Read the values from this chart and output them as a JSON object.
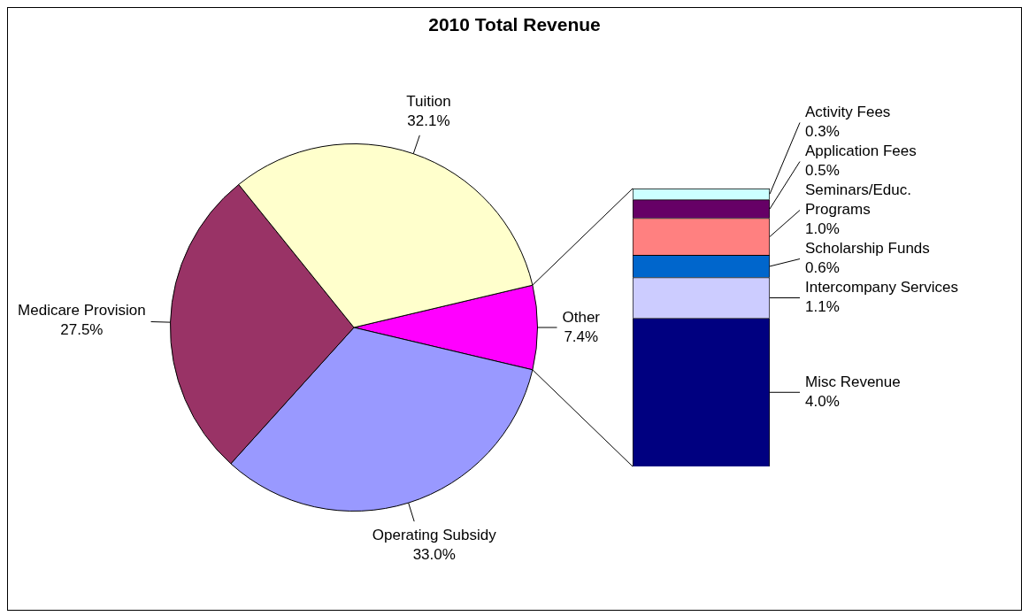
{
  "chart_data": [
    {
      "type": "pie",
      "title": "2010 Total Revenue",
      "categories": [
        "Other",
        "Operating Subsidy",
        "Medicare Provision",
        "Tuition"
      ],
      "values": [
        7.4,
        33.0,
        27.5,
        32.1
      ],
      "colors": [
        "#ff00ff",
        "#9999ff",
        "#993366",
        "#ffffcc"
      ],
      "value_labels": [
        "7.4%",
        "33.0%",
        "27.5%",
        "32.1%"
      ]
    },
    {
      "type": "bar",
      "stacked": true,
      "categories": [
        null
      ],
      "series": [
        {
          "name": "Misc Revenue",
          "color": "#000080",
          "values": [
            4.0
          ],
          "value_labels": [
            "4.0%"
          ]
        },
        {
          "name": "Intercompany Services",
          "color": "#ccccff",
          "values": [
            1.1
          ],
          "value_labels": [
            "1.1%"
          ]
        },
        {
          "name": "Scholarship Funds",
          "color": "#0066cc",
          "values": [
            0.6
          ],
          "value_labels": [
            "0.6%"
          ]
        },
        {
          "name": "Seminars/Educ. Programs",
          "color": "#ff8080",
          "values": [
            1.0
          ],
          "value_labels": [
            "1.0%"
          ]
        },
        {
          "name": "Application Fees",
          "color": "#660066",
          "values": [
            0.5
          ],
          "value_labels": [
            "0.5%"
          ]
        },
        {
          "name": "Activity Fees",
          "color": "#ccffff",
          "values": [
            0.3
          ],
          "value_labels": [
            "0.3%"
          ]
        }
      ]
    }
  ]
}
